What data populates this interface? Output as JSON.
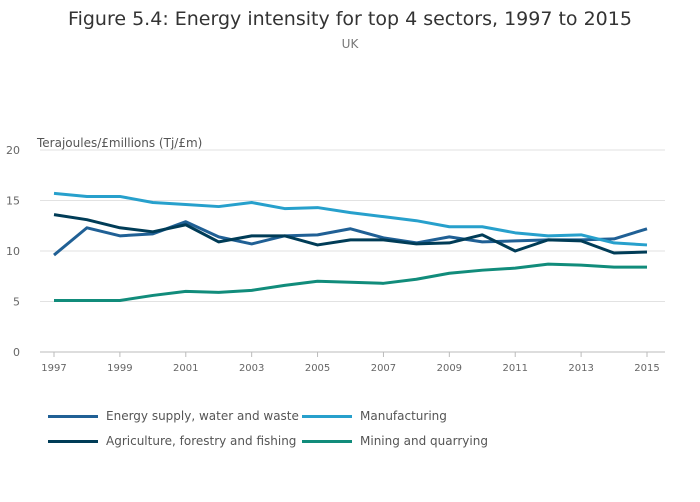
{
  "chart_data": {
    "type": "line",
    "title": "Figure 5.4: Energy intensity for top 4 sectors, 1997 to 2015",
    "subtitle": "UK",
    "ylabel": "Terajoules/£millions (Tj/£m)",
    "xlabel": "",
    "ylim": [
      0,
      20
    ],
    "yticks": [
      0,
      5,
      10,
      15,
      20
    ],
    "xticks": [
      1997,
      1999,
      2001,
      2003,
      2005,
      2007,
      2009,
      2011,
      2013,
      2015
    ],
    "x": [
      1997,
      1998,
      1999,
      2000,
      2001,
      2002,
      2003,
      2004,
      2005,
      2006,
      2007,
      2008,
      2009,
      2010,
      2011,
      2012,
      2013,
      2014,
      2015
    ],
    "grid": true,
    "legend": "bottom",
    "series": [
      {
        "name": "Energy supply, water and waste",
        "color": "#206095",
        "values": [
          9.6,
          12.3,
          11.5,
          11.7,
          12.9,
          11.4,
          10.7,
          11.5,
          11.6,
          12.2,
          11.3,
          10.8,
          11.4,
          10.9,
          11.0,
          11.1,
          11.1,
          11.2,
          12.2
        ]
      },
      {
        "name": "Manufacturing",
        "color": "#27a0cc",
        "values": [
          15.7,
          15.4,
          15.4,
          14.8,
          14.6,
          14.4,
          14.8,
          14.2,
          14.3,
          13.8,
          13.4,
          13.0,
          12.4,
          12.4,
          11.8,
          11.5,
          11.6,
          10.8,
          10.6
        ]
      },
      {
        "name": "Agriculture, forestry and fishing",
        "color": "#003c57",
        "values": [
          13.6,
          13.1,
          12.3,
          11.9,
          12.6,
          10.9,
          11.5,
          11.5,
          10.6,
          11.1,
          11.1,
          10.7,
          10.8,
          11.6,
          10.0,
          11.1,
          11.0,
          9.8,
          9.9
        ]
      },
      {
        "name": "Mining and quarrying",
        "color": "#118c7b",
        "values": [
          5.1,
          5.1,
          5.1,
          5.6,
          6.0,
          5.9,
          6.1,
          6.6,
          7.0,
          6.9,
          6.8,
          7.2,
          7.8,
          8.1,
          8.3,
          8.7,
          8.6,
          8.4,
          8.4
        ]
      }
    ]
  }
}
